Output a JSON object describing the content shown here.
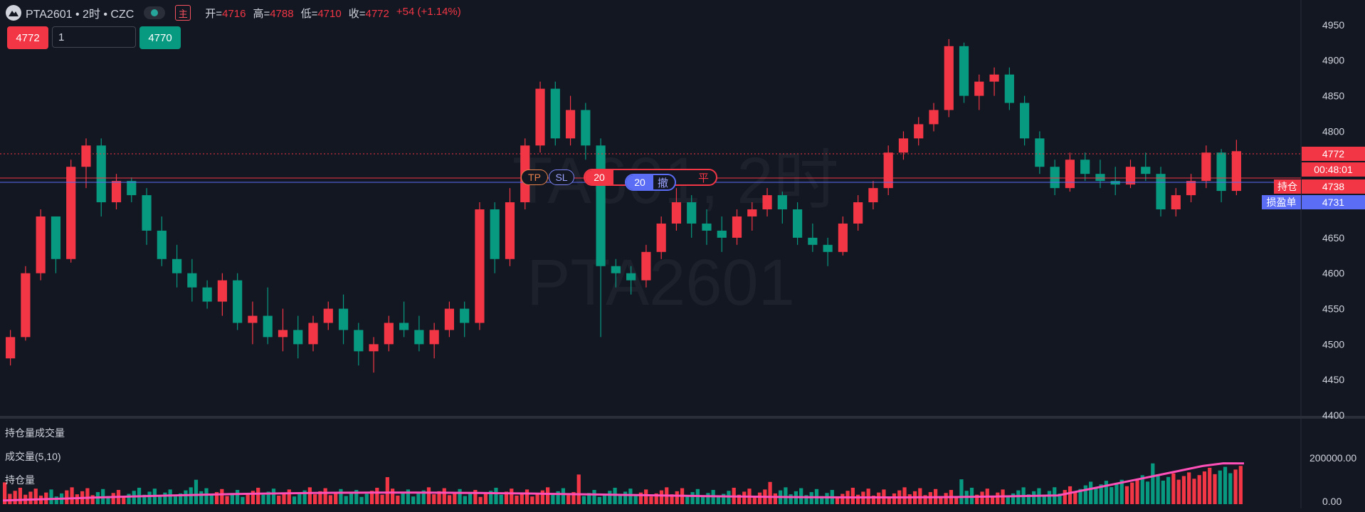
{
  "header": {
    "symbol": "PTA2601 • 2时 • CZC",
    "main_badge": "主",
    "ohlc": [
      {
        "k": "开=",
        "v": "4716"
      },
      {
        "k": "高=",
        "v": "4788"
      },
      {
        "k": "低=",
        "v": "4710"
      },
      {
        "k": "收=",
        "v": "4772"
      },
      {
        "k": "",
        "v": "+54 (+1.14%)"
      }
    ]
  },
  "trade": {
    "sell_price": "4772",
    "qty_value": "1",
    "buy_price": "4770"
  },
  "watermark": {
    "line1": "TA601, 2时",
    "line2": "PTA2601"
  },
  "order_widget": {
    "tp": "TP",
    "sl": "SL",
    "position_qty": "20",
    "close": "平",
    "order_qty": "20",
    "cancel": "撤"
  },
  "price_axis": {
    "ticks": [
      "4950",
      "4900",
      "4850",
      "4800",
      "4750",
      "4700",
      "4650",
      "4600",
      "4550",
      "4500",
      "4450",
      "4400"
    ],
    "last_price": "4772",
    "countdown": "00:48:01",
    "position_price": "4738",
    "position_label": "持仓",
    "stop_price": "4731",
    "stop_label": "损盈单"
  },
  "volume_axis": {
    "ticks": [
      "200000.00",
      "0.00"
    ]
  },
  "subpane": {
    "title": "持仓量成交量",
    "volume_label": "成交量(5,10)",
    "oi_label": "持仓量"
  },
  "colors": {
    "up": "#f23645",
    "down": "#089981",
    "bg": "#131722",
    "oi_line": "#ff4fb8",
    "order": "#5b6cf5"
  },
  "chart_data": {
    "type": "candlestick",
    "ylim": [
      4400,
      4975
    ],
    "candles": [
      [
        4480,
        4520,
        4470,
        4510
      ],
      [
        4510,
        4610,
        4505,
        4600
      ],
      [
        4600,
        4690,
        4590,
        4680
      ],
      [
        4680,
        4680,
        4600,
        4620
      ],
      [
        4620,
        4760,
        4615,
        4750
      ],
      [
        4750,
        4790,
        4720,
        4780
      ],
      [
        4780,
        4790,
        4680,
        4700
      ],
      [
        4700,
        4740,
        4690,
        4730
      ],
      [
        4730,
        4735,
        4700,
        4710
      ],
      [
        4710,
        4720,
        4640,
        4660
      ],
      [
        4660,
        4680,
        4610,
        4620
      ],
      [
        4620,
        4640,
        4580,
        4600
      ],
      [
        4600,
        4620,
        4560,
        4580
      ],
      [
        4580,
        4590,
        4550,
        4560
      ],
      [
        4560,
        4600,
        4540,
        4590
      ],
      [
        4590,
        4600,
        4520,
        4530
      ],
      [
        4530,
        4560,
        4500,
        4540
      ],
      [
        4540,
        4580,
        4500,
        4510
      ],
      [
        4510,
        4550,
        4490,
        4520
      ],
      [
        4520,
        4540,
        4480,
        4500
      ],
      [
        4500,
        4540,
        4490,
        4530
      ],
      [
        4530,
        4560,
        4520,
        4550
      ],
      [
        4550,
        4570,
        4500,
        4520
      ],
      [
        4520,
        4530,
        4470,
        4490
      ],
      [
        4490,
        4510,
        4460,
        4500
      ],
      [
        4500,
        4540,
        4490,
        4530
      ],
      [
        4530,
        4560,
        4510,
        4520
      ],
      [
        4520,
        4540,
        4490,
        4500
      ],
      [
        4500,
        4530,
        4480,
        4520
      ],
      [
        4520,
        4560,
        4510,
        4550
      ],
      [
        4550,
        4560,
        4510,
        4530
      ],
      [
        4530,
        4700,
        4520,
        4690
      ],
      [
        4690,
        4700,
        4600,
        4620
      ],
      [
        4620,
        4720,
        4610,
        4700
      ],
      [
        4700,
        4790,
        4690,
        4780
      ],
      [
        4780,
        4870,
        4770,
        4860
      ],
      [
        4860,
        4870,
        4780,
        4790
      ],
      [
        4790,
        4850,
        4780,
        4830
      ],
      [
        4830,
        4840,
        4760,
        4780
      ],
      [
        4780,
        4790,
        4510,
        4610
      ],
      [
        4610,
        4620,
        4580,
        4600
      ],
      [
        4600,
        4610,
        4570,
        4590
      ],
      [
        4590,
        4640,
        4580,
        4630
      ],
      [
        4630,
        4680,
        4620,
        4670
      ],
      [
        4670,
        4720,
        4660,
        4700
      ],
      [
        4700,
        4710,
        4650,
        4670
      ],
      [
        4670,
        4690,
        4640,
        4660
      ],
      [
        4660,
        4680,
        4630,
        4650
      ],
      [
        4650,
        4690,
        4640,
        4680
      ],
      [
        4680,
        4700,
        4660,
        4690
      ],
      [
        4690,
        4720,
        4680,
        4710
      ],
      [
        4710,
        4715,
        4670,
        4690
      ],
      [
        4690,
        4700,
        4640,
        4650
      ],
      [
        4650,
        4670,
        4630,
        4640
      ],
      [
        4640,
        4650,
        4610,
        4630
      ],
      [
        4630,
        4680,
        4625,
        4670
      ],
      [
        4670,
        4710,
        4660,
        4700
      ],
      [
        4700,
        4730,
        4690,
        4720
      ],
      [
        4720,
        4780,
        4710,
        4770
      ],
      [
        4770,
        4800,
        4760,
        4790
      ],
      [
        4790,
        4820,
        4780,
        4810
      ],
      [
        4810,
        4840,
        4800,
        4830
      ],
      [
        4830,
        4930,
        4820,
        4920
      ],
      [
        4920,
        4925,
        4840,
        4850
      ],
      [
        4850,
        4880,
        4830,
        4870
      ],
      [
        4870,
        4890,
        4850,
        4880
      ],
      [
        4880,
        4890,
        4830,
        4840
      ],
      [
        4840,
        4850,
        4780,
        4790
      ],
      [
        4790,
        4800,
        4740,
        4750
      ],
      [
        4750,
        4760,
        4710,
        4720
      ],
      [
        4720,
        4770,
        4715,
        4760
      ],
      [
        4760,
        4770,
        4730,
        4740
      ],
      [
        4740,
        4760,
        4720,
        4730
      ],
      [
        4730,
        4750,
        4710,
        4725
      ],
      [
        4725,
        4760,
        4720,
        4750
      ],
      [
        4750,
        4770,
        4730,
        4740
      ],
      [
        4740,
        4750,
        4680,
        4690
      ],
      [
        4690,
        4720,
        4680,
        4710
      ],
      [
        4710,
        4740,
        4700,
        4730
      ],
      [
        4730,
        4780,
        4720,
        4770
      ],
      [
        4770,
        4775,
        4700,
        4716
      ],
      [
        4716,
        4788,
        4710,
        4772
      ]
    ]
  }
}
